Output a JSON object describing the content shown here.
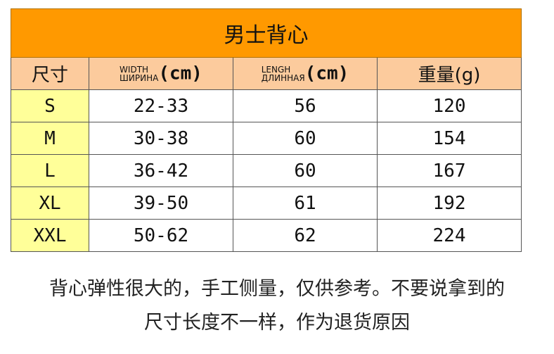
{
  "title": "男士背心",
  "headers": {
    "size": "尺寸",
    "width_top": "WIDTH",
    "width_bottom": "ШИРИНА",
    "width_unit": "(cm)",
    "length_top": "LENGH",
    "length_bottom": "ДЛИННАЯ",
    "length_unit": "(cm)",
    "weight": "重量(g)"
  },
  "rows": [
    {
      "size": "S",
      "width": "22-33",
      "length": "56",
      "weight": "120"
    },
    {
      "size": "M",
      "width": "30-38",
      "length": "60",
      "weight": "154"
    },
    {
      "size": "L",
      "width": "36-42",
      "length": "60",
      "weight": "167"
    },
    {
      "size": "XL",
      "width": "39-50",
      "length": "61",
      "weight": "192"
    },
    {
      "size": "XXL",
      "width": "50-62",
      "length": "62",
      "weight": "224"
    }
  ],
  "note_line1": "背心弹性很大的，手工侧量，仅供参考。不要说拿到的",
  "note_line2": "尺寸长度不一样，作为退货原因",
  "colors": {
    "title_bg": "#FF9900",
    "header_bg": "#FCCB9D",
    "size_col_bg": "#FFFF99"
  }
}
